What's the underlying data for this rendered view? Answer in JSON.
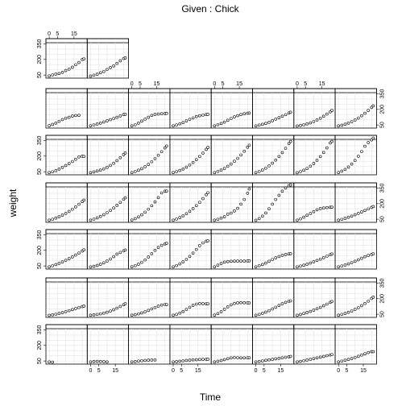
{
  "chart_data": {
    "type": "scatter",
    "title": "Given : Chick",
    "xlabel": "Time",
    "ylabel": "weight",
    "xlim": [
      -2,
      23
    ],
    "ylim": [
      20,
      400
    ],
    "x_ticks": [
      0,
      5,
      15
    ],
    "y_ticks": [
      50,
      200,
      350
    ],
    "grid": true,
    "time": [
      0,
      2,
      4,
      6,
      8,
      10,
      12,
      14,
      16,
      18,
      20,
      21
    ],
    "rows": [
      {
        "row": 1,
        "panels": [
          {
            "col": 1,
            "weight": [
              41,
              51,
              59,
              64,
              76,
              93,
              106,
              125,
              149,
              171,
              199,
              205
            ]
          },
          {
            "col": 2,
            "weight": [
              40,
              49,
              58,
              72,
              84,
              103,
              122,
              138,
              162,
              187,
              209,
              215
            ]
          }
        ]
      },
      {
        "row": 2,
        "panels": [
          {
            "col": 1,
            "weight": [
              43,
              55,
              68,
              85,
              101,
              116,
              124,
              136,
              141,
              143
            ]
          },
          {
            "col": 2,
            "weight": [
              42,
              51,
              59,
              68,
              79,
              90,
              101,
              113,
              124,
              137,
              150,
              152
            ]
          },
          {
            "col": 3,
            "weight": [
              41,
              52,
              68,
              87,
              106,
              124,
              142,
              151,
              155,
              158,
              160,
              162
            ]
          },
          {
            "col": 4,
            "weight": [
              41,
              50,
              61,
              73,
              89,
              104,
              118,
              131,
              139,
              145,
              150,
              152
            ]
          },
          {
            "col": 5,
            "weight": [
              41,
              53,
              64,
              78,
              95,
              112,
              128,
              140,
              150,
              158,
              163,
              165
            ]
          },
          {
            "col": 6,
            "weight": [
              41,
              49,
              56,
              65,
              76,
              91,
              106,
              120,
              134,
              149,
              165,
              173
            ]
          },
          {
            "col": 7,
            "weight": [
              40,
              46,
              52,
              60,
              70,
              83,
              98,
              115,
              134,
              155,
              176,
              190
            ]
          },
          {
            "col": 8,
            "weight": [
              41,
              48,
              57,
              68,
              82,
              98,
              117,
              139,
              163,
              190,
              219,
              234
            ]
          }
        ]
      },
      {
        "row": 3,
        "panels": [
          {
            "col": 1,
            "weight": [
              41,
              49,
              60,
              75,
              92,
              110,
              128,
              148,
              170,
              192,
              199,
              197
            ]
          },
          {
            "col": 2,
            "weight": [
              41,
              48,
              56,
              65,
              77,
              92,
              110,
              131,
              156,
              185,
              215,
              230
            ]
          },
          {
            "col": 3,
            "weight": [
              41,
              52,
              64,
              79,
              98,
              120,
              146,
              176,
              208,
              243,
              279,
              297
            ]
          },
          {
            "col": 4,
            "weight": [
              42,
              51,
              62,
              76,
              94,
              115,
              139,
              166,
              196,
              229,
              265,
              283
            ]
          },
          {
            "col": 5,
            "weight": [
              41,
              53,
              66,
              82,
              102,
              124,
              150,
              179,
              211,
              247,
              286,
              305
            ]
          },
          {
            "col": 6,
            "weight": [
              41,
              52,
              66,
              84,
              106,
              132,
              162,
              196,
              234,
              276,
              322,
              340
            ]
          },
          {
            "col": 7,
            "weight": [
              40,
              51,
              64,
              81,
              103,
              129,
              160,
              195,
              235,
              279,
              327,
              341
            ]
          },
          {
            "col": 8,
            "weight": [
              42,
              55,
              72,
              95,
              124,
              158,
              198,
              244,
              295,
              331,
              356,
              373
            ]
          }
        ]
      },
      {
        "row": 4,
        "panels": [
          {
            "col": 1,
            "weight": [
              41,
              50,
              61,
              74,
              89,
              106,
              125,
              146,
              169,
              194,
              220,
              234
            ]
          },
          {
            "col": 2,
            "weight": [
              41,
              51,
              63,
              77,
              94,
              113,
              134,
              158,
              184,
              212,
              242,
              256
            ]
          },
          {
            "col": 3,
            "weight": [
              42,
              55,
              72,
              93,
              118,
              147,
              180,
              217,
              258,
              303,
              320,
              321
            ]
          },
          {
            "col": 4,
            "weight": [
              41,
              52,
              66,
              83,
              103,
              126,
              152,
              181,
              213,
              248,
              286,
              305
            ]
          },
          {
            "col": 5,
            "weight": [
              41,
              49,
              61,
              74,
              98,
              109,
              130,
              155,
              195,
              240,
              300,
              341
            ]
          },
          {
            "col": 6,
            "weight": [
              40,
              56,
              80,
              110,
              150,
              195,
              240,
              280,
              320,
              350,
              372,
              380
            ]
          },
          {
            "col": 7,
            "weight": [
              41,
              54,
              70,
              88,
              105,
              123,
              141,
              152,
              158,
              162,
              165,
              166
            ]
          },
          {
            "col": 8,
            "weight": [
              41,
              49,
              58,
              69,
              80,
              93,
              106,
              120,
              134,
              149,
              164,
              172
            ]
          }
        ]
      },
      {
        "row": 5,
        "panels": [
          {
            "col": 1,
            "weight": [
              41,
              52,
              63,
              75,
              89,
              104,
              120,
              137,
              155,
              174,
              194,
              205
            ]
          },
          {
            "col": 2,
            "weight": [
              41,
              47,
              55,
              66,
              80,
              97,
              117,
              140,
              164,
              180,
              195,
              203
            ]
          },
          {
            "col": 3,
            "weight": [
              42,
              53,
              67,
              85,
              108,
              136,
              168,
              200,
              228,
              248,
              262,
              268
            ]
          },
          {
            "col": 4,
            "weight": [
              41,
              54,
              70,
              90,
              114,
              142,
              174,
              209,
              245,
              272,
              288,
              292
            ]
          },
          {
            "col": 5,
            "weight": [
              41,
              57,
              74,
              87,
              92,
              95,
              96,
              97,
              97,
              97,
              98,
              99
            ]
          },
          {
            "col": 6,
            "weight": [
              41,
              53,
              64,
              78,
              95,
              112,
              128,
              141,
              152,
              160,
              166,
              168
            ]
          },
          {
            "col": 7,
            "weight": [
              41,
              49,
              57,
              67,
              78,
              90,
              103,
              116,
              130,
              144,
              158,
              165
            ]
          },
          {
            "col": 8,
            "weight": [
              41,
              50,
              59,
              70,
              82,
              95,
              109,
              124,
              139,
              151,
              161,
              166
            ]
          }
        ]
      },
      {
        "row": 6,
        "panels": [
          {
            "col": 1,
            "weight": [
              40,
              45,
              51,
              58,
              66,
              75,
              85,
              95,
              105,
              115,
              124,
              128
            ]
          },
          {
            "col": 2,
            "weight": [
              41,
              45,
              49,
              54,
              61,
              70,
              81,
              94,
              109,
              125,
              142,
              151
            ]
          },
          {
            "col": 3,
            "weight": [
              41,
              47,
              54,
              63,
              74,
              87,
              101,
              115,
              128,
              139,
              145,
              143
            ]
          },
          {
            "col": 4,
            "weight": [
              41,
              49,
              61,
              77,
              97,
              118,
              136,
              148,
              153,
              152,
              150,
              150
            ]
          },
          {
            "col": 5,
            "weight": [
              42,
              56,
              75,
              98,
              121,
              141,
              154,
              160,
              162,
              161,
              160,
              159
            ]
          },
          {
            "col": 6,
            "weight": [
              41,
              49,
              59,
              71,
              85,
              101,
              118,
              135,
              151,
              165,
              176,
              179
            ]
          },
          {
            "col": 7,
            "weight": [
              40,
              48,
              57,
              67,
              78,
              90,
              103,
              117,
              132,
              148,
              165,
              173
            ]
          },
          {
            "col": 8,
            "weight": [
              41,
              49,
              58,
              69,
              82,
              97,
              114,
              133,
              154,
              177,
              202,
              215
            ]
          }
        ]
      },
      {
        "row": 7,
        "panels": [
          {
            "col": 1,
            "weight": [
              41,
              39
            ]
          },
          {
            "col": 2,
            "weight": [
              41,
              45,
              47,
              46,
              44,
              41
            ]
          },
          {
            "col": 3,
            "weight": [
              41,
              45,
              49,
              53,
              55,
              58,
              59,
              60
            ]
          },
          {
            "col": 4,
            "weight": [
              41,
              44,
              48,
              52,
              55,
              58,
              61,
              62,
              64,
              66,
              67,
              67
            ]
          },
          {
            "col": 5,
            "weight": [
              41,
              48,
              55,
              63,
              72,
              80,
              84,
              82,
              80,
              80,
              81,
              82
            ]
          },
          {
            "col": 6,
            "weight": [
              41,
              46,
              51,
              56,
              61,
              66,
              71,
              76,
              81,
              86,
              91,
              94
            ]
          },
          {
            "col": 7,
            "weight": [
              41,
              47,
              53,
              59,
              66,
              73,
              80,
              87,
              94,
              101,
              108,
              112
            ]
          },
          {
            "col": 8,
            "weight": [
              41,
              49,
              57,
              65,
              74,
              84,
              95,
              107,
              119,
              131,
              140,
              140
            ]
          }
        ]
      }
    ]
  }
}
